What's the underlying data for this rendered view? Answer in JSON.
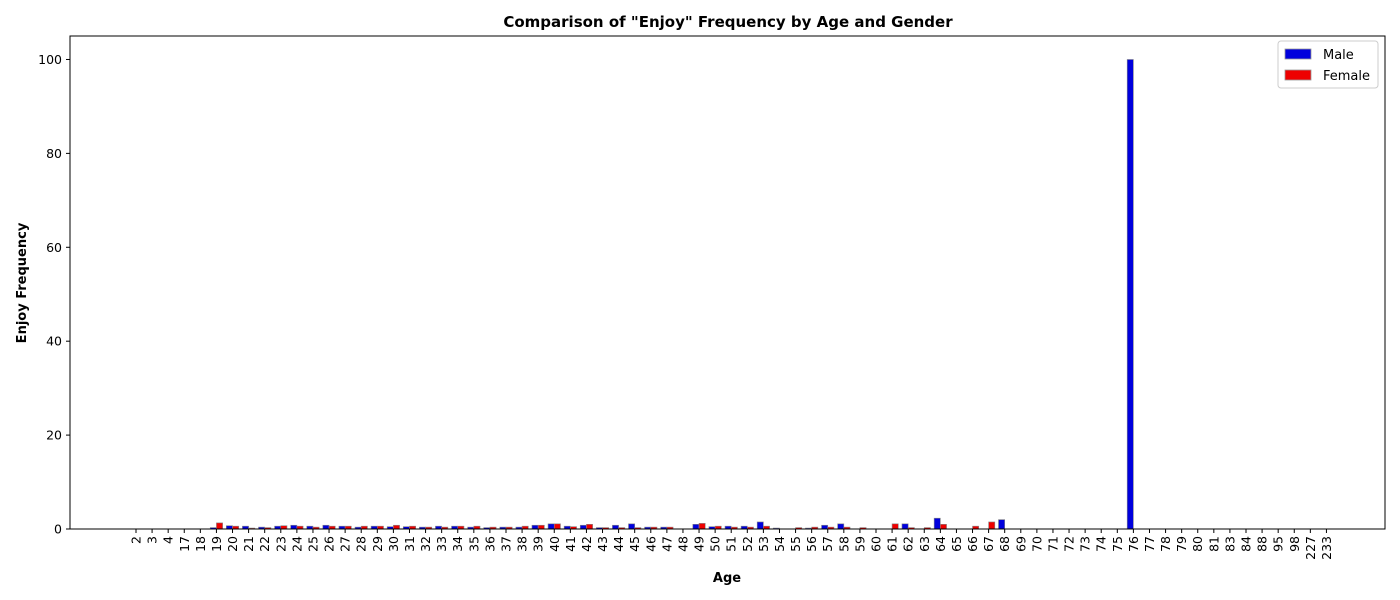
{
  "chart_data": {
    "type": "bar",
    "title": "Comparison of \"Enjoy\" Frequency by Age and Gender",
    "xlabel": "Age",
    "ylabel": "Enjoy Frequency",
    "ylim": [
      0,
      105
    ],
    "yticks": [
      0,
      20,
      40,
      60,
      80,
      100
    ],
    "grid": false,
    "legend_position": "top-right",
    "categories": [
      "2",
      "3",
      "4",
      "17",
      "18",
      "19",
      "20",
      "21",
      "22",
      "23",
      "24",
      "25",
      "26",
      "27",
      "28",
      "29",
      "30",
      "31",
      "32",
      "33",
      "34",
      "35",
      "36",
      "37",
      "38",
      "39",
      "40",
      "41",
      "42",
      "43",
      "44",
      "45",
      "46",
      "47",
      "48",
      "49",
      "50",
      "51",
      "52",
      "53",
      "54",
      "55",
      "56",
      "57",
      "58",
      "59",
      "60",
      "61",
      "62",
      "63",
      "64",
      "65",
      "66",
      "67",
      "68",
      "69",
      "70",
      "71",
      "72",
      "73",
      "74",
      "75",
      "76",
      "77",
      "78",
      "79",
      "80",
      "81",
      "83",
      "84",
      "88",
      "95",
      "98",
      "227",
      "233"
    ],
    "series": [
      {
        "name": "Male",
        "color": "#0000dd",
        "values": [
          0,
          0,
          0,
          0,
          0,
          0.3,
          0.7,
          0.6,
          0.4,
          0.6,
          0.8,
          0.6,
          0.8,
          0.6,
          0.4,
          0.6,
          0.5,
          0.5,
          0.4,
          0.6,
          0.6,
          0.4,
          0.3,
          0.4,
          0.4,
          0.8,
          1.1,
          0.6,
          0.8,
          0.3,
          0.8,
          1.1,
          0.4,
          0.4,
          0,
          1.0,
          0.5,
          0.6,
          0.6,
          1.5,
          0.2,
          0,
          0.2,
          0.8,
          1.1,
          0,
          0,
          0,
          1.1,
          0,
          2.3,
          0,
          0,
          0,
          2.0,
          0,
          0,
          0,
          0,
          0,
          0,
          0,
          100,
          0,
          0,
          0,
          0,
          0,
          0,
          0,
          0,
          0,
          0,
          0,
          0
        ]
      },
      {
        "name": "Female",
        "color": "#ee0000",
        "values": [
          0,
          0,
          0,
          0,
          0,
          1.3,
          0.6,
          0.2,
          0.3,
          0.7,
          0.6,
          0.4,
          0.6,
          0.6,
          0.6,
          0.6,
          0.8,
          0.6,
          0.4,
          0.4,
          0.6,
          0.6,
          0.4,
          0.4,
          0.6,
          0.8,
          1.1,
          0.5,
          1.0,
          0.3,
          0.3,
          0.3,
          0.4,
          0.4,
          0,
          1.2,
          0.6,
          0.4,
          0.4,
          0.6,
          0,
          0.3,
          0.4,
          0.4,
          0.4,
          0.3,
          0,
          1.1,
          0.3,
          0.3,
          1.0,
          0,
          0.6,
          1.5,
          0,
          0,
          0,
          0,
          0,
          0,
          0,
          0,
          0,
          0,
          0,
          0,
          0,
          0,
          0,
          0,
          0,
          0,
          0,
          0,
          0
        ]
      }
    ]
  }
}
